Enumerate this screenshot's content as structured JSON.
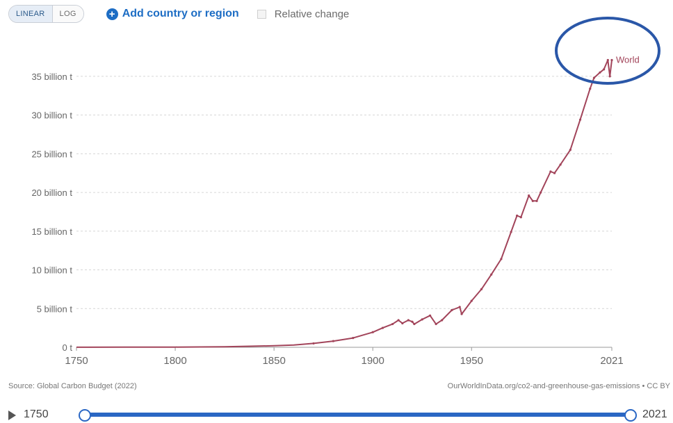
{
  "toolbar": {
    "linear_label": "LINEAR",
    "log_label": "LOG",
    "add_label": "Add country or region",
    "relative_label": "Relative change"
  },
  "chart_data": {
    "type": "line",
    "title": "",
    "xlabel": "",
    "ylabel": "",
    "x_ticks": [
      "1750",
      "1800",
      "1850",
      "1900",
      "1950",
      "2021"
    ],
    "y_ticks": [
      "0 t",
      "5 billion t",
      "10 billion t",
      "15 billion t",
      "20 billion t",
      "25 billion t",
      "30 billion t",
      "35 billion t"
    ],
    "xlim": [
      1750,
      2021
    ],
    "ylim": [
      0,
      37.5
    ],
    "y_unit": "billion t",
    "grid": true,
    "series": [
      {
        "name": "World",
        "color": "#a2445a",
        "x": [
          1750,
          1775,
          1800,
          1825,
          1850,
          1860,
          1870,
          1880,
          1890,
          1900,
          1905,
          1910,
          1913,
          1915,
          1918,
          1920,
          1921,
          1925,
          1929,
          1932,
          1935,
          1940,
          1944,
          1945,
          1950,
          1955,
          1960,
          1965,
          1970,
          1973,
          1975,
          1979,
          1981,
          1983,
          1985,
          1990,
          1992,
          1995,
          2000,
          2005,
          2010,
          2012,
          2015,
          2017,
          2019,
          2020,
          2021
        ],
        "y": [
          0.01,
          0.02,
          0.03,
          0.06,
          0.2,
          0.3,
          0.5,
          0.8,
          1.2,
          1.95,
          2.5,
          3.0,
          3.5,
          3.1,
          3.5,
          3.3,
          3.0,
          3.6,
          4.1,
          3.0,
          3.5,
          4.8,
          5.2,
          4.3,
          6.0,
          7.5,
          9.4,
          11.4,
          14.9,
          17.0,
          16.8,
          19.6,
          18.9,
          18.9,
          20.0,
          22.7,
          22.5,
          23.6,
          25.5,
          29.4,
          33.4,
          34.8,
          35.5,
          35.9,
          37.1,
          35.0,
          37.1
        ]
      }
    ],
    "annotations": [
      "World"
    ]
  },
  "footer": {
    "source": "Source: Global Carbon Budget (2022)",
    "url": "OurWorldInData.org/co2-and-greenhouse-gas-emissions • CC BY"
  },
  "timeline": {
    "start": "1750",
    "end": "2021"
  },
  "colors": {
    "line": "#a2445a",
    "accent": "#1d6dc4",
    "highlight_circle": "#2a57a8",
    "slider": "#2a67c4"
  }
}
